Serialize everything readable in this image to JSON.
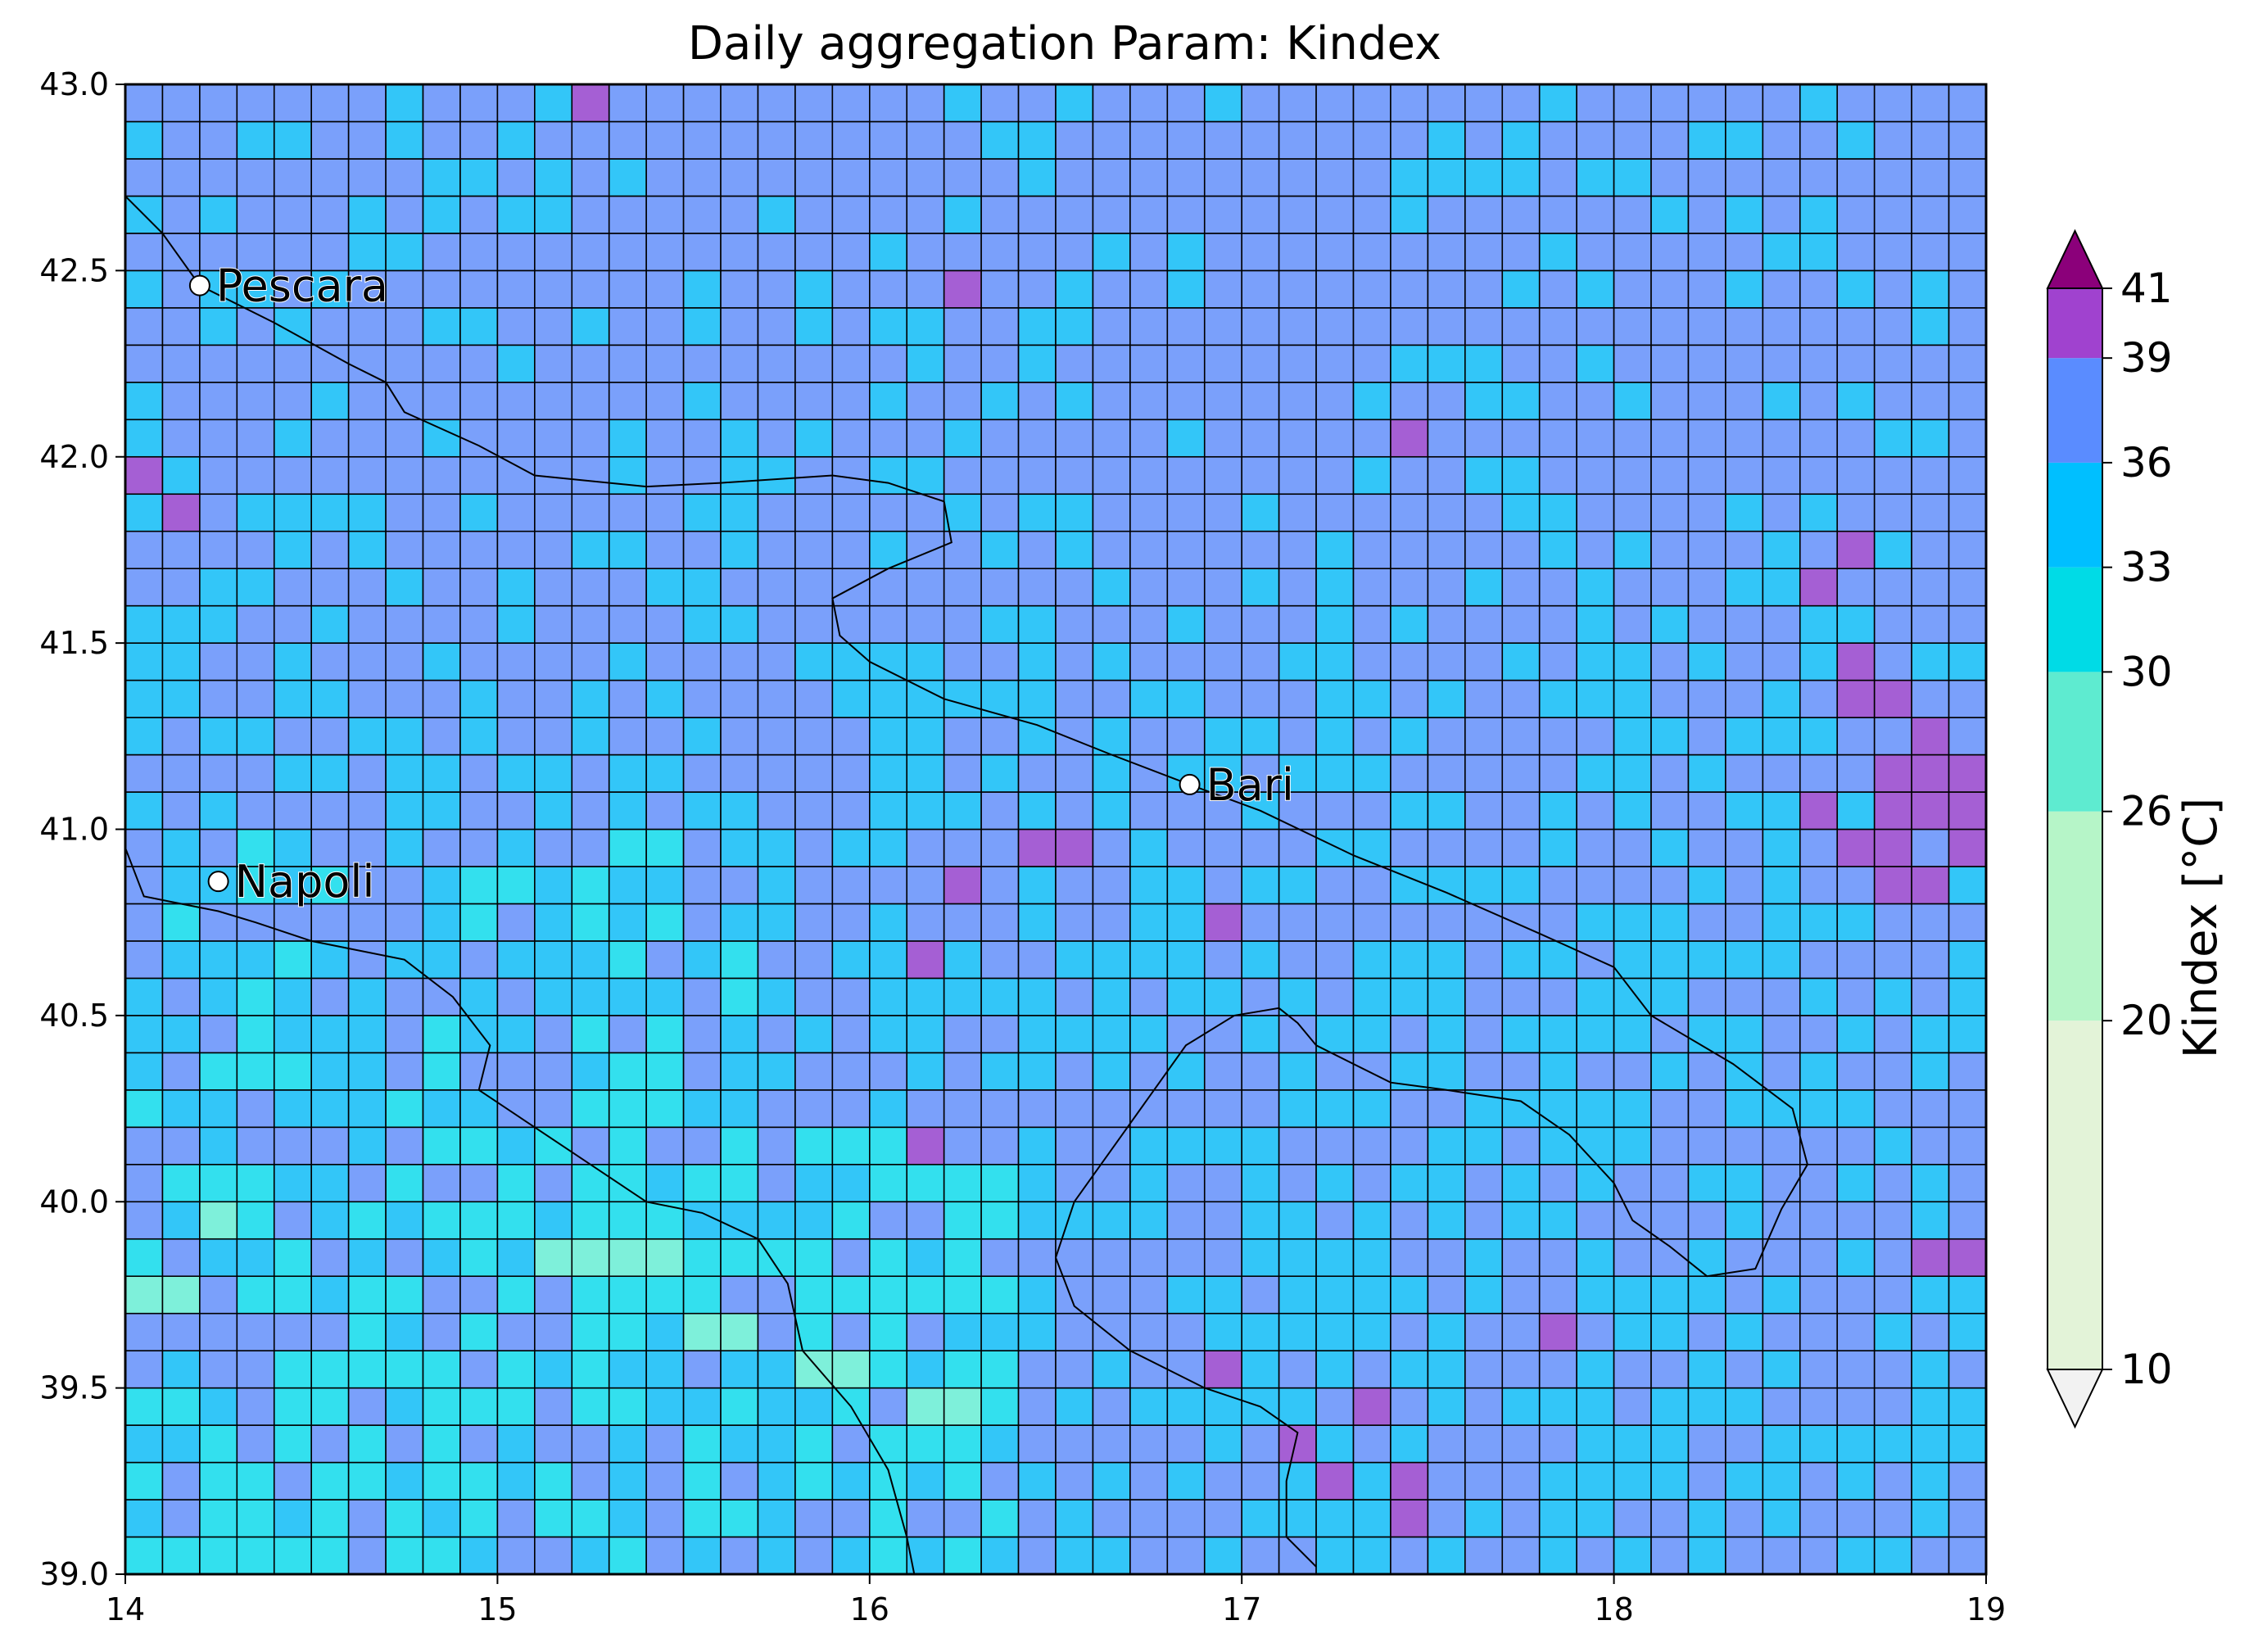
{
  "chart_data": {
    "type": "heatmap",
    "title": "Daily aggregation Param: Kindex",
    "xlabel": "",
    "ylabel": "",
    "xlim": [
      14,
      19
    ],
    "ylim": [
      39,
      43
    ],
    "x_ticks": [
      14,
      15,
      16,
      17,
      18,
      19
    ],
    "y_ticks": [
      39.0,
      39.5,
      40.0,
      40.5,
      41.0,
      41.5,
      42.0,
      42.5,
      43.0
    ],
    "grid_resolution_deg": 0.1,
    "grid_cols": 50,
    "grid_rows": 40,
    "colorbar": {
      "label": "Kindex [°C]",
      "levels": [
        10,
        20,
        26,
        30,
        33,
        36,
        39,
        41
      ],
      "colors": [
        "#e3f3d8",
        "#b6f5c8",
        "#5eebd0",
        "#00dbe6",
        "#00bfff",
        "#5a8cff",
        "#a042cf"
      ],
      "under_color": "#f2f2f2",
      "over_color": "#8b007a"
    },
    "cell_colors": {
      "blue": "#7aa0fb",
      "sky": "#33c6f8",
      "cyan": "#33e0ee",
      "aqua": "#7ef0da",
      "purple": "#a55fd4"
    },
    "cells_purple": [
      [
        15.2,
        42.9
      ],
      [
        16.2,
        42.4
      ],
      [
        17.4,
        42.0
      ],
      [
        14.0,
        41.9
      ],
      [
        14.1,
        41.8
      ],
      [
        18.6,
        41.7
      ],
      [
        18.5,
        41.6
      ],
      [
        18.6,
        41.4
      ],
      [
        18.6,
        41.3
      ],
      [
        18.7,
        41.3
      ],
      [
        18.8,
        41.2
      ],
      [
        18.7,
        41.1
      ],
      [
        18.8,
        41.1
      ],
      [
        18.9,
        41.1
      ],
      [
        18.5,
        41.0
      ],
      [
        18.7,
        41.0
      ],
      [
        18.8,
        41.0
      ],
      [
        18.9,
        41.0
      ],
      [
        16.4,
        40.9
      ],
      [
        16.5,
        40.9
      ],
      [
        18.6,
        40.9
      ],
      [
        18.7,
        40.9
      ],
      [
        18.9,
        40.9
      ],
      [
        16.2,
        40.8
      ],
      [
        18.7,
        40.8
      ],
      [
        18.8,
        40.8
      ],
      [
        16.9,
        40.7
      ],
      [
        16.1,
        40.6
      ],
      [
        16.1,
        40.1
      ],
      [
        18.8,
        39.8
      ],
      [
        18.9,
        39.8
      ],
      [
        17.8,
        39.6
      ],
      [
        16.9,
        39.5
      ],
      [
        17.3,
        39.4
      ],
      [
        17.1,
        39.3
      ],
      [
        17.2,
        39.2
      ],
      [
        17.4,
        39.2
      ],
      [
        17.4,
        39.1
      ]
    ],
    "cells_aqua": [
      [
        14.2,
        39.9
      ],
      [
        14.0,
        39.7
      ],
      [
        14.1,
        39.7
      ],
      [
        15.1,
        39.8
      ],
      [
        15.2,
        39.8
      ],
      [
        15.3,
        39.8
      ],
      [
        15.4,
        39.8
      ],
      [
        15.5,
        39.6
      ],
      [
        15.6,
        39.6
      ],
      [
        15.8,
        39.5
      ],
      [
        15.9,
        39.5
      ],
      [
        16.1,
        39.4
      ],
      [
        16.2,
        39.4
      ]
    ],
    "cities": [
      {
        "name": "Pescara",
        "lon": 14.2,
        "lat": 42.46
      },
      {
        "name": "Bari",
        "lon": 16.86,
        "lat": 41.12
      },
      {
        "name": "Napoli",
        "lon": 14.25,
        "lat": 40.86
      }
    ],
    "coastline_segments": [
      [
        [
          14.0,
          42.7
        ],
        [
          14.1,
          42.6
        ],
        [
          14.2,
          42.46
        ],
        [
          14.4,
          42.36
        ],
        [
          14.6,
          42.25
        ],
        [
          14.7,
          42.2
        ],
        [
          14.75,
          42.12
        ],
        [
          14.95,
          42.03
        ],
        [
          15.1,
          41.95
        ],
        [
          15.4,
          41.92
        ],
        [
          15.6,
          41.93
        ],
        [
          15.9,
          41.95
        ],
        [
          16.05,
          41.93
        ],
        [
          16.2,
          41.88
        ],
        [
          16.22,
          41.77
        ],
        [
          16.05,
          41.7
        ],
        [
          15.9,
          41.62
        ],
        [
          15.92,
          41.52
        ],
        [
          16.0,
          41.45
        ],
        [
          16.2,
          41.35
        ],
        [
          16.45,
          41.28
        ],
        [
          16.65,
          41.2
        ],
        [
          16.86,
          41.12
        ],
        [
          17.05,
          41.05
        ],
        [
          17.3,
          40.93
        ],
        [
          17.55,
          40.83
        ],
        [
          17.8,
          40.72
        ],
        [
          18.0,
          40.63
        ],
        [
          18.1,
          40.5
        ],
        [
          18.32,
          40.37
        ],
        [
          18.48,
          40.25
        ],
        [
          18.52,
          40.1
        ],
        [
          18.45,
          39.98
        ],
        [
          18.38,
          39.82
        ],
        [
          18.25,
          39.8
        ],
        [
          18.15,
          39.88
        ],
        [
          18.05,
          39.95
        ],
        [
          18.0,
          40.05
        ],
        [
          17.88,
          40.18
        ],
        [
          17.75,
          40.27
        ],
        [
          17.55,
          40.3
        ],
        [
          17.4,
          40.32
        ],
        [
          17.2,
          40.42
        ],
        [
          17.15,
          40.48
        ],
        [
          17.1,
          40.52
        ],
        [
          16.98,
          40.5
        ],
        [
          16.85,
          40.42
        ],
        [
          16.75,
          40.28
        ],
        [
          16.65,
          40.14
        ],
        [
          16.55,
          40.0
        ],
        [
          16.5,
          39.85
        ],
        [
          16.55,
          39.72
        ],
        [
          16.7,
          39.6
        ],
        [
          16.9,
          39.5
        ],
        [
          17.05,
          39.45
        ],
        [
          17.15,
          39.38
        ],
        [
          17.12,
          39.25
        ],
        [
          17.12,
          39.1
        ],
        [
          17.2,
          39.02
        ]
      ],
      [
        [
          14.0,
          40.95
        ],
        [
          14.05,
          40.82
        ],
        [
          14.15,
          40.8
        ],
        [
          14.25,
          40.78
        ],
        [
          14.35,
          40.75
        ],
        [
          14.5,
          40.7
        ],
        [
          14.6,
          40.68
        ],
        [
          14.75,
          40.65
        ],
        [
          14.88,
          40.55
        ],
        [
          14.98,
          40.42
        ],
        [
          14.95,
          40.3
        ],
        [
          15.1,
          40.2
        ],
        [
          15.25,
          40.1
        ],
        [
          15.4,
          40.0
        ],
        [
          15.55,
          39.97
        ],
        [
          15.7,
          39.9
        ],
        [
          15.78,
          39.78
        ],
        [
          15.82,
          39.6
        ],
        [
          15.95,
          39.45
        ],
        [
          16.05,
          39.28
        ],
        [
          16.1,
          39.1
        ],
        [
          16.12,
          39.0
        ]
      ]
    ]
  }
}
